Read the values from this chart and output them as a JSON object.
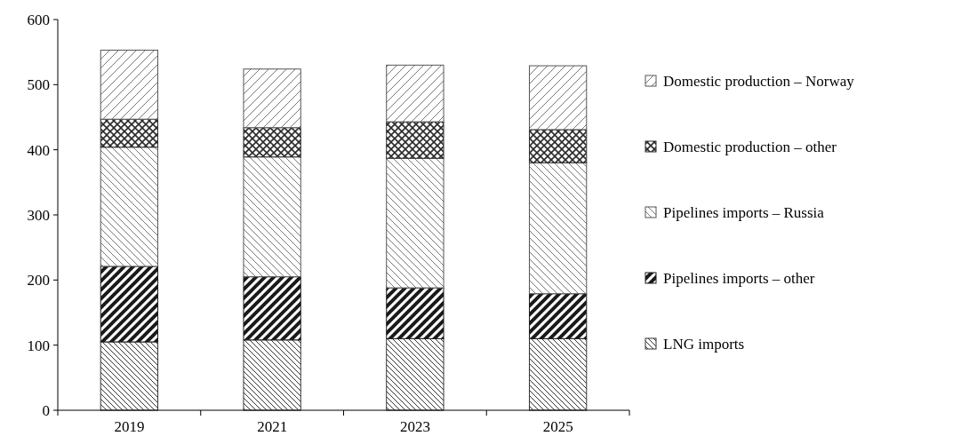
{
  "chart_data": {
    "type": "bar",
    "stacked": true,
    "categories": [
      "2019",
      "2021",
      "2023",
      "2025"
    ],
    "series": [
      {
        "name": "LNG imports",
        "color": "#333333",
        "values": [
          105,
          108,
          110,
          110
        ]
      },
      {
        "name": "Pipelines imports – other",
        "color": "#1a1a1a",
        "values": [
          116,
          97,
          78,
          69
        ]
      },
      {
        "name": "Pipelines imports – Russia",
        "color": "#555555",
        "values": [
          183,
          184,
          199,
          201
        ]
      },
      {
        "name": "Domestic production – other",
        "color": "#2a2a2a",
        "values": [
          43,
          45,
          56,
          51
        ]
      },
      {
        "name": "Domestic production – Norway",
        "color": "#555555",
        "values": [
          106,
          90,
          87,
          98
        ]
      }
    ],
    "ylim": [
      0,
      600
    ],
    "yticks": [
      0,
      100,
      200,
      300,
      400,
      500,
      600
    ],
    "grid": false,
    "legend": "right"
  }
}
